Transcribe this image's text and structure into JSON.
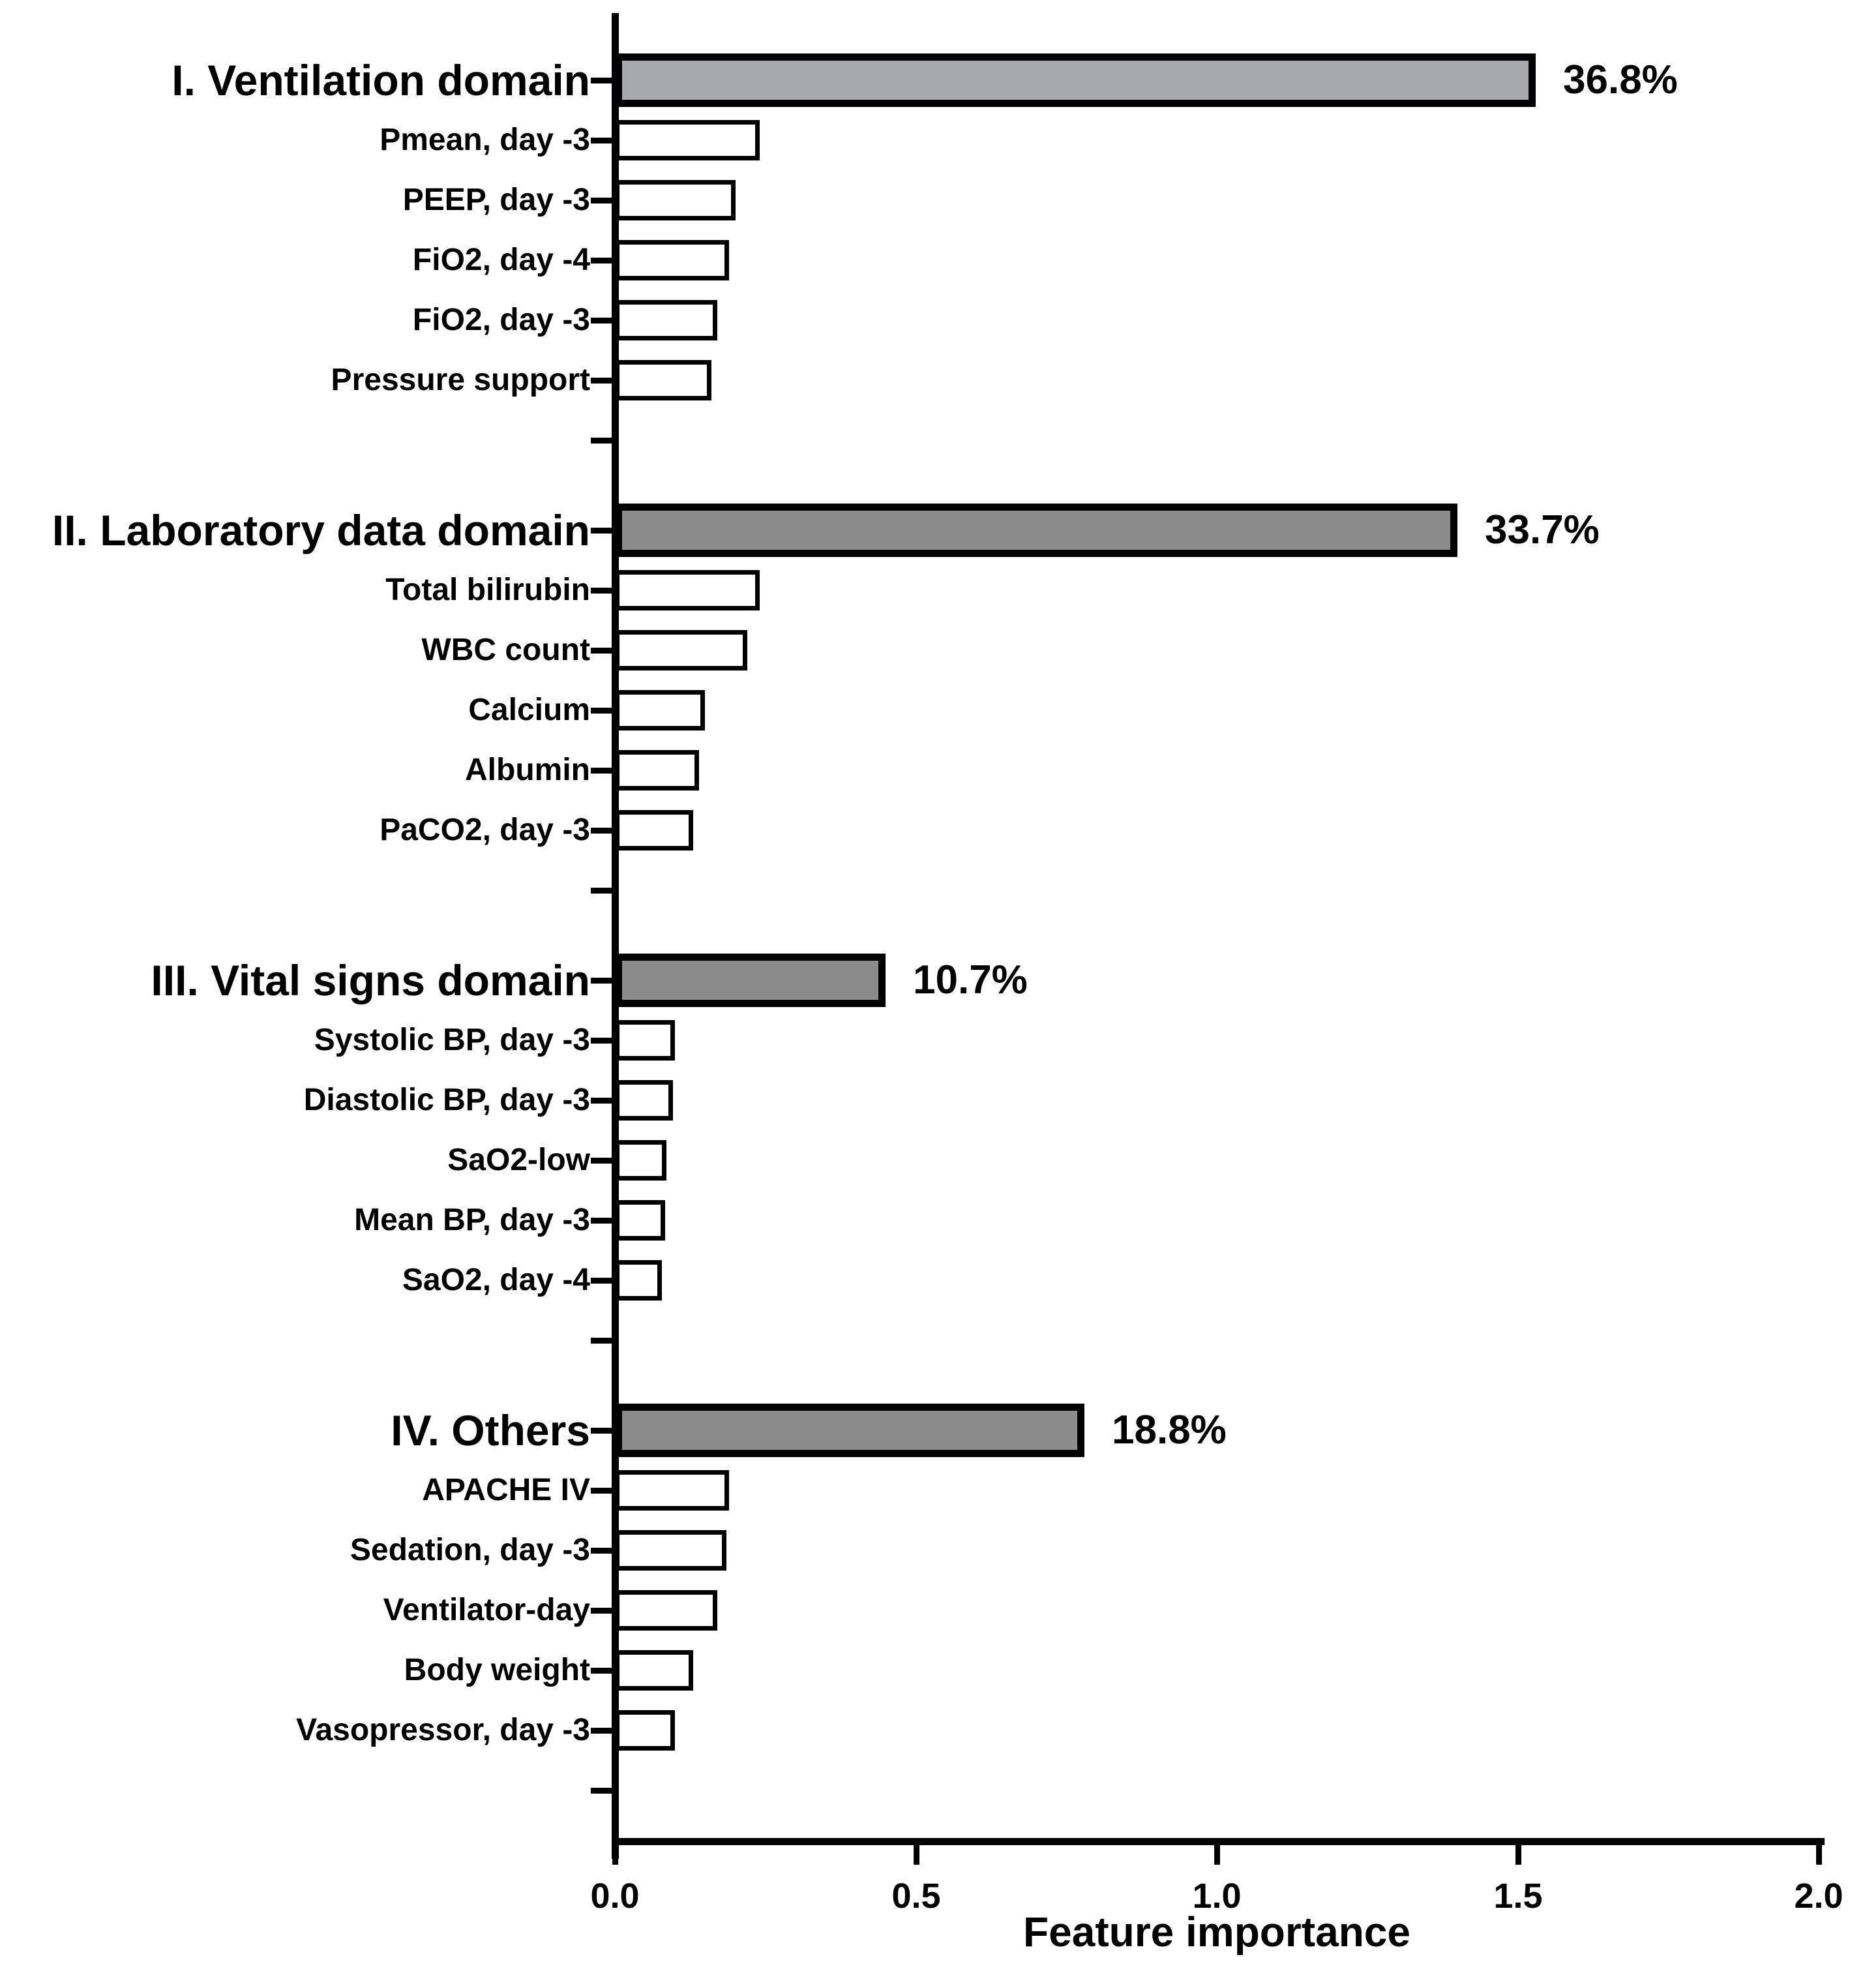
{
  "chart_data": {
    "type": "bar",
    "orientation": "horizontal",
    "title": "",
    "xlabel": "Feature importance",
    "ylabel": "",
    "xlim": [
      0.0,
      2.0
    ],
    "x_ticks": [
      {
        "label": "0.0",
        "value": 0.0
      },
      {
        "label": "0.5",
        "value": 0.5
      },
      {
        "label": "1.0",
        "value": 1.0
      },
      {
        "label": "1.5",
        "value": 1.5
      },
      {
        "label": "2.0",
        "value": 2.0
      }
    ],
    "grid": false,
    "legend_position": "none",
    "bar_colors": {
      "group_1_fill": "#a7a7ae",
      "group_fill": "#8b8b8b",
      "feature_fill": "#ffffff",
      "stroke": "#000000"
    },
    "groups": [
      {
        "label": "I. Ventilation domain",
        "value": 1.53,
        "percent_label": "36.8%",
        "fill": "#a7a7ae",
        "features": [
          {
            "label": "Pmean, day -3",
            "value": 0.24
          },
          {
            "label": "PEEP, day -3",
            "value": 0.2
          },
          {
            "label": "FiO2, day -4",
            "value": 0.19
          },
          {
            "label": "FiO2, day -3",
            "value": 0.17
          },
          {
            "label": "Pressure support",
            "value": 0.16
          }
        ]
      },
      {
        "label": "II. Laboratory data domain",
        "value": 1.4,
        "percent_label": "33.7%",
        "fill": "#8b8b8b",
        "features": [
          {
            "label": "Total bilirubin",
            "value": 0.24
          },
          {
            "label": "WBC count",
            "value": 0.22
          },
          {
            "label": "Calcium",
            "value": 0.15
          },
          {
            "label": "Albumin",
            "value": 0.14
          },
          {
            "label": "PaCO2, day -3",
            "value": 0.13
          }
        ]
      },
      {
        "label": "III. Vital signs domain",
        "value": 0.45,
        "percent_label": "10.7%",
        "fill": "#8b8b8b",
        "features": [
          {
            "label": "Systolic BP, day -3",
            "value": 0.1
          },
          {
            "label": "Diastolic BP, day -3",
            "value": 0.096
          },
          {
            "label": "SaO2-low",
            "value": 0.086
          },
          {
            "label": "Mean BP, day -3",
            "value": 0.083
          },
          {
            "label": "SaO2, day -4",
            "value": 0.078
          }
        ]
      },
      {
        "label": "IV. Others",
        "value": 0.78,
        "percent_label": "18.8%",
        "fill": "#8b8b8b",
        "features": [
          {
            "label": "APACHE IV",
            "value": 0.19
          },
          {
            "label": "Sedation, day -3",
            "value": 0.185
          },
          {
            "label": "Ventilator-day",
            "value": 0.17
          },
          {
            "label": "Body weight",
            "value": 0.13
          },
          {
            "label": "Vasopressor, day -3",
            "value": 0.1
          }
        ]
      }
    ]
  }
}
